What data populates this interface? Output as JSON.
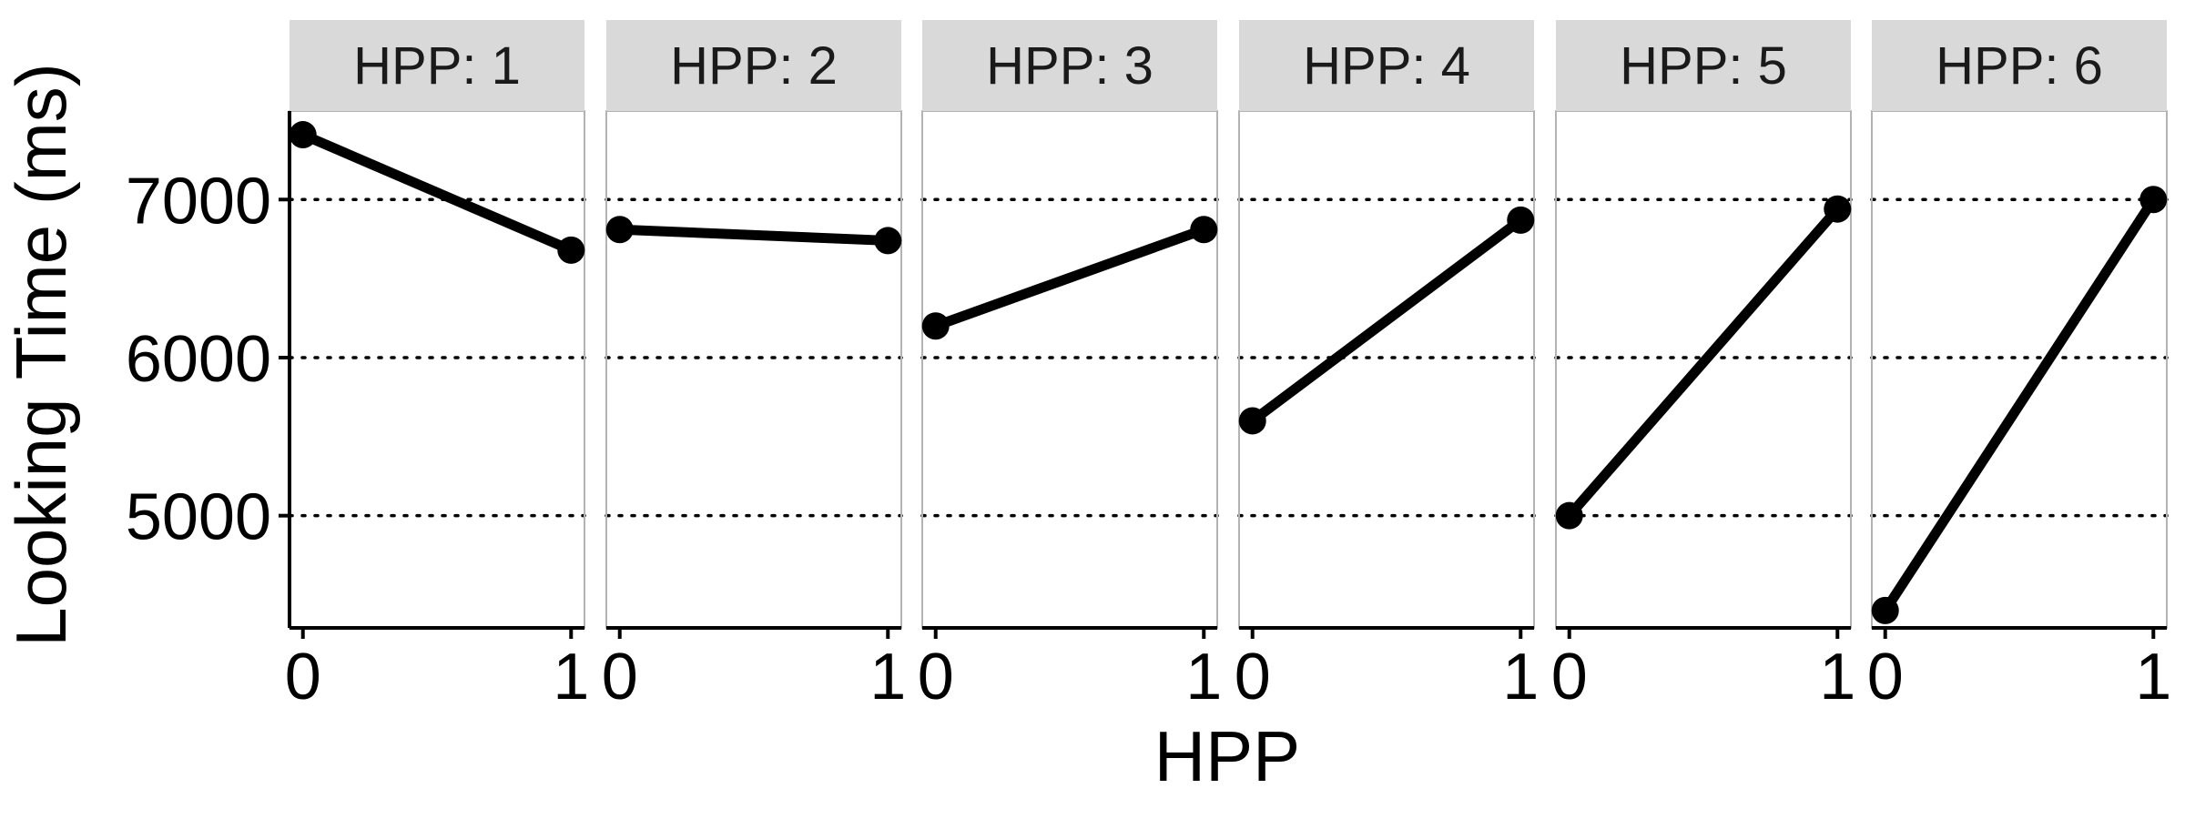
{
  "chart_data": {
    "type": "line",
    "facet_variable": "HPP",
    "facets": [
      {
        "label": "HPP: 1",
        "x": [
          0,
          1
        ],
        "y": [
          7410,
          6680
        ]
      },
      {
        "label": "HPP: 2",
        "x": [
          0,
          1
        ],
        "y": [
          6810,
          6740
        ]
      },
      {
        "label": "HPP: 3",
        "x": [
          0,
          1
        ],
        "y": [
          6200,
          6810
        ]
      },
      {
        "label": "HPP: 4",
        "x": [
          0,
          1
        ],
        "y": [
          5600,
          6870
        ]
      },
      {
        "label": "HPP: 5",
        "x": [
          0,
          1
        ],
        "y": [
          5000,
          6940
        ]
      },
      {
        "label": "HPP: 6",
        "x": [
          0,
          1
        ],
        "y": [
          4400,
          7000
        ]
      }
    ],
    "xlabel": "HPP",
    "ylabel": "Looking Time (ms)",
    "x_ticks": [
      0,
      1
    ],
    "x_tick_labels": [
      "0",
      "1"
    ],
    "y_ticks": [
      5000,
      6000,
      7000
    ],
    "y_tick_labels": [
      "5000",
      "6000",
      "7000"
    ],
    "ylim": [
      4290,
      7560
    ],
    "xlim": [
      -0.05,
      1.05
    ],
    "gridlines": "horizontal dotted at y ticks",
    "strip_color": "#d9d9d9",
    "line_color": "#000000"
  }
}
